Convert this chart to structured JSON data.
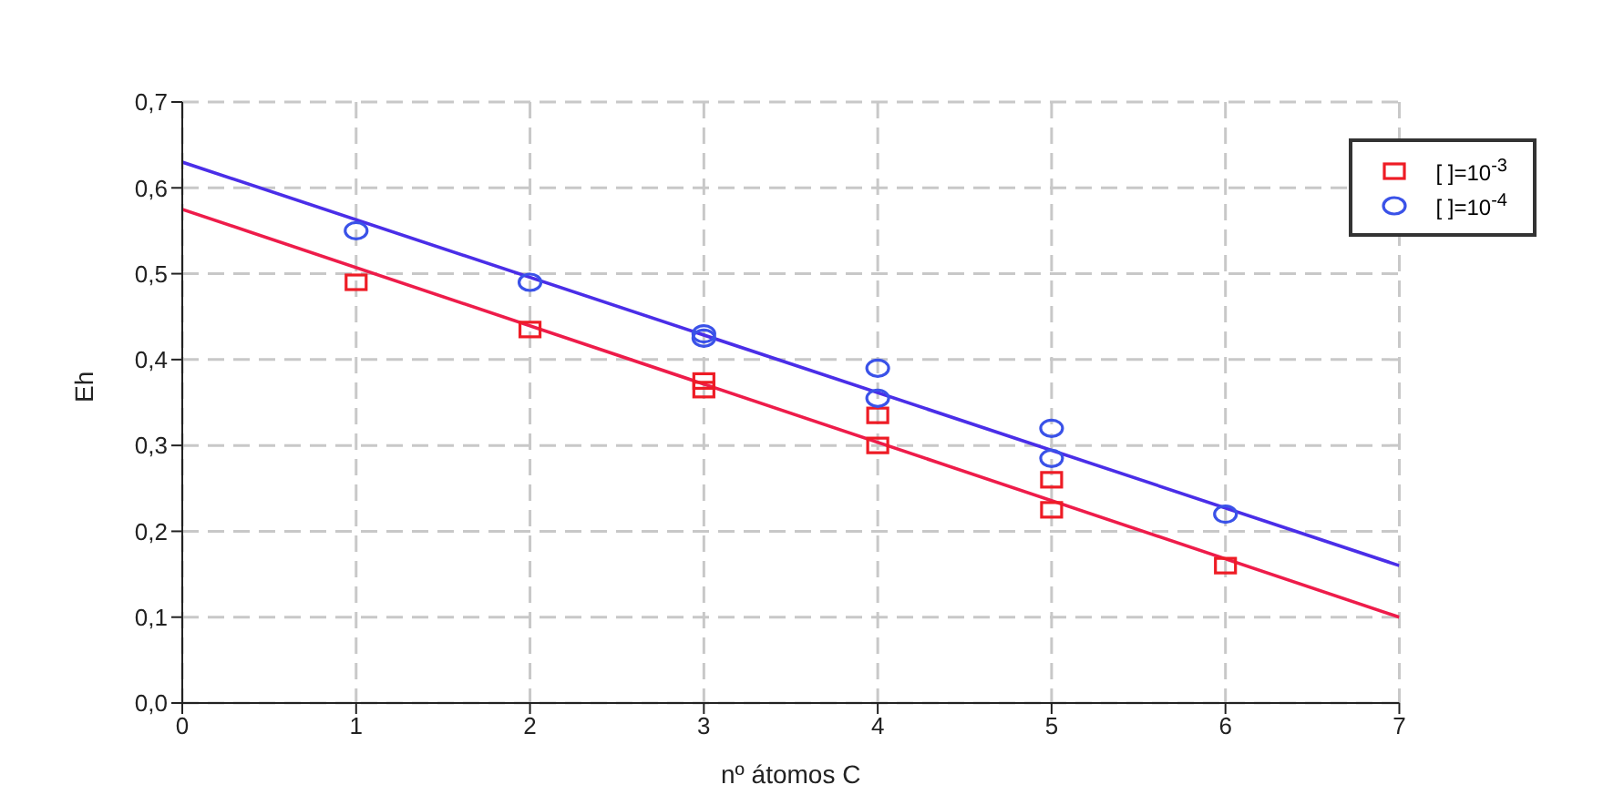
{
  "chart_data": {
    "type": "scatter",
    "xlabel": "nº átomos C",
    "ylabel": "Eh",
    "xlim": [
      0,
      7
    ],
    "xticks": [
      0,
      1,
      2,
      3,
      4,
      5,
      6,
      7
    ],
    "ylim": [
      0,
      0.7
    ],
    "yticks": [
      {
        "value": 0,
        "label": "0,0"
      },
      {
        "value": 0.1,
        "label": "0,1"
      },
      {
        "value": 0.2,
        "label": "0,2"
      },
      {
        "value": 0.3,
        "label": "0,3"
      },
      {
        "value": 0.4,
        "label": "0,4"
      },
      {
        "value": 0.5,
        "label": "0,5"
      },
      {
        "value": 0.6,
        "label": "0,6"
      },
      {
        "value": 0.7,
        "label": "0,7"
      }
    ],
    "grid": true,
    "legend": "top right",
    "series": [
      {
        "name": "[ ]=10$^{-3}$",
        "marker": "square",
        "color": "#ee1c25",
        "x": [
          1,
          2,
          3,
          3,
          4,
          4,
          5,
          5,
          6
        ],
        "values": [
          0.49,
          0.435,
          0.375,
          0.365,
          0.335,
          0.3,
          0.26,
          0.225,
          0.16
        ]
      },
      {
        "name": "[ ]=10$^{-4}$",
        "marker": "circle",
        "color": "#3a52e8",
        "x": [
          1,
          2,
          3,
          3,
          4,
          4,
          5,
          5,
          6
        ],
        "values": [
          0.55,
          0.49,
          0.43,
          0.425,
          0.39,
          0.355,
          0.32,
          0.285,
          0.22
        ]
      },
      {
        "type": "line",
        "marker": "none",
        "line_style": "solid",
        "color": "#ee1c4a",
        "x": [
          0,
          7
        ],
        "values": [
          0.575,
          0.1
        ]
      },
      {
        "type": "line",
        "marker": "none",
        "line_style": "solid",
        "color": "#4a2ee8",
        "x": [
          0,
          7
        ],
        "values": [
          0.63,
          0.16
        ]
      }
    ]
  }
}
